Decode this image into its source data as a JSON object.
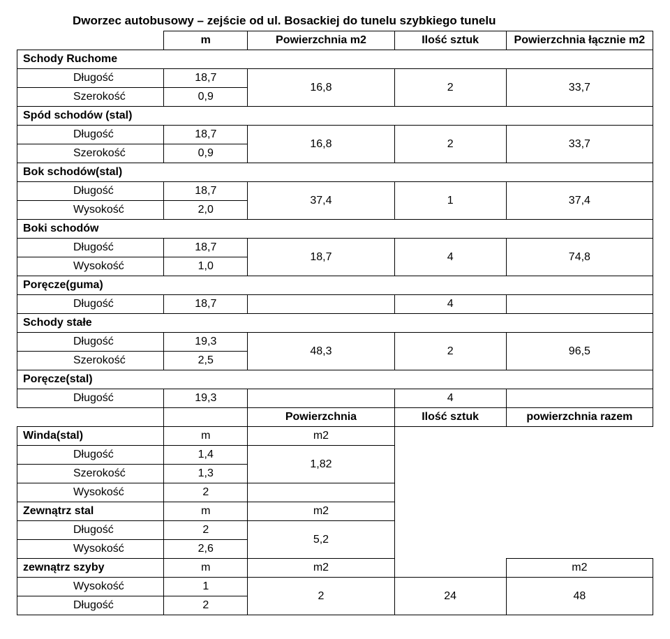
{
  "title": "Dworzec autobusowy – zejście od ul. Bosackiej do tunelu szybkiego tunelu",
  "header": {
    "col_m": "m",
    "col_area": "Powierzchnia m2",
    "col_qty": "Ilość sztuk",
    "col_total": "Powierzchnia łącznie m2"
  },
  "labels": {
    "dlugosc": "Długość",
    "szerokosc": "Szerokość",
    "wysokosc": "Wysokość"
  },
  "sections": {
    "schody_ruchome": {
      "title": "Schody Ruchome",
      "dlugosc": "18,7",
      "szerokosc": "0,9",
      "area": "16,8",
      "qty": "2",
      "total": "33,7"
    },
    "spod_schodow": {
      "title": "Spód schodów (stal)",
      "dlugosc": "18,7",
      "szerokosc": "0,9",
      "area": "16,8",
      "qty": "2",
      "total": "33,7"
    },
    "bok_schodow": {
      "title": "Bok schodów(stal)",
      "dlugosc": "18,7",
      "wysokosc": "2,0",
      "area": "37,4",
      "qty": "1",
      "total": "37,4"
    },
    "boki_schodow": {
      "title": "Boki schodów",
      "dlugosc": "18,7",
      "wysokosc": "1,0",
      "area": "18,7",
      "qty": "4",
      "total": "74,8"
    },
    "porecze_guma": {
      "title": "Poręcze(guma)",
      "dlugosc": "18,7",
      "qty": "4"
    },
    "schody_stale": {
      "title": "Schody stałe",
      "dlugosc": "19,3",
      "szerokosc": "2,5",
      "area": "48,3",
      "qty": "2",
      "total": "96,5"
    },
    "porecze_stal": {
      "title": "Poręcze(stal)",
      "dlugosc": "19,3",
      "qty": "4"
    }
  },
  "subheader": {
    "col_area": "Powierzchnia",
    "col_qty": "Ilość sztuk",
    "col_total": "powierzchnia razem"
  },
  "winda": {
    "title": "Winda(stal)",
    "col_m": "m",
    "col_m2": "m2",
    "dlugosc": "1,4",
    "szerokosc": "1,3",
    "wysokosc": "2",
    "area": "1,82"
  },
  "zewnatrz_stal": {
    "title": "Zewnątrz stal",
    "col_m": "m",
    "col_m2": "m2",
    "dlugosc": "2",
    "wysokosc": "2,6",
    "area": "5,2"
  },
  "zewnatrz_szyby": {
    "title": "zewnątrz szyby",
    "col_m": "m",
    "col_m2": "m2",
    "col_m2b": "m2",
    "wysokosc": "1",
    "dlugosc": "2",
    "area": "2",
    "qty": "24",
    "total": "48"
  }
}
